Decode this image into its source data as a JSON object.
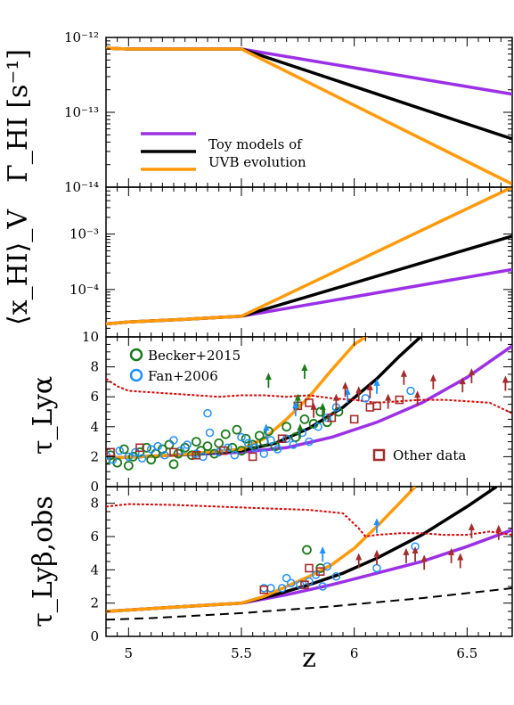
{
  "chart_data": [
    {
      "type": "line",
      "panel": "gamma",
      "ylabel": "Γ_HI [s⁻¹]",
      "xlabel": "z",
      "xlim": [
        4.9,
        6.7
      ],
      "ylim": [
        1e-14,
        1e-12
      ],
      "yscale": "log",
      "ytick_labels": [
        "10⁻¹²",
        "10⁻¹³",
        "10⁻¹⁴"
      ],
      "ytick_values": [
        1e-12,
        1e-13,
        1e-14
      ],
      "legend": {
        "position": "bottom-left",
        "entries": [
          "",
          "Toy models of",
          "UVB evolution"
        ]
      },
      "series": [
        {
          "color": "#9b30e6",
          "x": [
            4.9,
            5.0,
            5.5,
            6.7
          ],
          "y": [
            7.2e-13,
            7e-13,
            7e-13,
            1.75e-13
          ]
        },
        {
          "color": "#000000",
          "x": [
            4.9,
            5.0,
            5.5,
            6.7
          ],
          "y": [
            7.2e-13,
            7e-13,
            7e-13,
            4.4e-14
          ]
        },
        {
          "color": "#ff9a0a",
          "x": [
            4.9,
            5.0,
            5.5,
            6.7
          ],
          "y": [
            7.2e-13,
            7e-13,
            7e-13,
            1.1e-14
          ]
        }
      ]
    },
    {
      "type": "line",
      "panel": "xhi",
      "ylabel": "⟨x_HI⟩_V",
      "xlim": [
        4.9,
        6.7
      ],
      "ylim": [
        1.4e-05,
        0.007
      ],
      "yscale": "log",
      "ytick_labels": [
        "10⁻³",
        "10⁻⁴"
      ],
      "ytick_values": [
        0.001,
        0.0001
      ],
      "series": [
        {
          "color": "#9b30e6",
          "x": [
            4.9,
            5.0,
            5.25,
            5.5,
            6.7
          ],
          "y": [
            2.4e-05,
            2.6e-05,
            2.9e-05,
            3.3e-05,
            0.00023
          ]
        },
        {
          "color": "#000000",
          "x": [
            4.9,
            5.0,
            5.25,
            5.5,
            6.7
          ],
          "y": [
            2.4e-05,
            2.6e-05,
            2.9e-05,
            3.3e-05,
            0.00092
          ]
        },
        {
          "color": "#ff9a0a",
          "x": [
            4.9,
            5.0,
            5.25,
            5.5,
            6.7
          ],
          "y": [
            2.4e-05,
            2.6e-05,
            2.9e-05,
            3.3e-05,
            0.007
          ]
        }
      ]
    },
    {
      "type": "scatter",
      "panel": "taua",
      "ylabel": "τ_Lyα",
      "xlim": [
        4.9,
        6.7
      ],
      "ylim": [
        0,
        10
      ],
      "ytick_labels": [
        "0",
        "2",
        "4",
        "6",
        "8",
        "10"
      ],
      "ytick_values": [
        0,
        2,
        4,
        6,
        8,
        10
      ],
      "legend": {
        "entries": [
          "Becker+2015",
          "Fan+2006",
          "Other data"
        ]
      },
      "lines": [
        {
          "color": "#9b30e6",
          "x": [
            4.9,
            5.2,
            5.5,
            5.7,
            5.9,
            6.1,
            6.3,
            6.5,
            6.7
          ],
          "y": [
            1.9,
            2.1,
            2.3,
            2.6,
            3.3,
            4.3,
            5.6,
            7.3,
            9.4
          ]
        },
        {
          "color": "#000000",
          "x": [
            4.9,
            5.2,
            5.5,
            5.65,
            5.8,
            5.95,
            6.1,
            6.2,
            6.33
          ],
          "y": [
            1.9,
            2.1,
            2.4,
            2.9,
            3.9,
            5.3,
            7.2,
            8.7,
            10.5
          ]
        },
        {
          "color": "#ff9a0a",
          "x": [
            4.9,
            5.2,
            5.5,
            5.6,
            5.7,
            5.8,
            5.9,
            6.0,
            6.1
          ],
          "y": [
            1.9,
            2.1,
            2.5,
            3.2,
            4.5,
            6.0,
            7.8,
            9.5,
            10.5
          ]
        },
        {
          "color": "#e00000",
          "dashed": true,
          "x": [
            4.9,
            4.95,
            5.0,
            5.1,
            5.2,
            5.3,
            5.4,
            5.5,
            5.6,
            5.7,
            5.8,
            5.9,
            6.0,
            6.1,
            6.2,
            6.3,
            6.4,
            6.5,
            6.6,
            6.7
          ],
          "y": [
            7.2,
            6.7,
            6.4,
            6.3,
            6.2,
            6.1,
            6.0,
            6.1,
            6.1,
            6.0,
            6.1,
            5.9,
            5.8,
            5.6,
            5.7,
            5.8,
            5.8,
            5.7,
            5.6,
            4.9
          ]
        }
      ],
      "becker": [
        [
          4.9,
          1.8
        ],
        [
          4.92,
          2.1
        ],
        [
          4.95,
          1.6
        ],
        [
          4.98,
          2.5
        ],
        [
          5.0,
          1.4
        ],
        [
          5.02,
          2.0
        ],
        [
          5.05,
          2.3
        ],
        [
          5.08,
          2.6
        ],
        [
          5.1,
          1.8
        ],
        [
          5.12,
          2.2
        ],
        [
          5.15,
          2.5
        ],
        [
          5.18,
          2.8
        ],
        [
          5.2,
          1.5
        ],
        [
          5.22,
          2.2
        ],
        [
          5.25,
          2.6
        ],
        [
          5.28,
          2.1
        ],
        [
          5.3,
          3.0
        ],
        [
          5.32,
          2.4
        ],
        [
          5.35,
          2.7
        ],
        [
          5.38,
          2.2
        ],
        [
          5.4,
          2.9
        ],
        [
          5.43,
          3.5
        ],
        [
          5.46,
          2.6
        ],
        [
          5.48,
          3.8
        ],
        [
          5.5,
          2.4
        ],
        [
          5.52,
          3.2
        ],
        [
          5.55,
          2.8
        ],
        [
          5.58,
          3.4
        ],
        [
          5.6,
          3.0
        ],
        [
          5.62,
          3.7
        ],
        [
          5.65,
          2.7
        ],
        [
          5.7,
          4.0
        ],
        [
          5.74,
          3.3
        ],
        [
          5.78,
          4.5
        ],
        [
          5.82,
          4.2
        ],
        [
          5.85,
          5.0
        ],
        [
          5.88,
          4.3
        ],
        [
          5.93,
          5.0
        ]
      ],
      "fan": [
        [
          4.9,
          2.1
        ],
        [
          4.93,
          1.8
        ],
        [
          4.96,
          2.4
        ],
        [
          5.0,
          2.0
        ],
        [
          5.03,
          2.3
        ],
        [
          5.06,
          1.9
        ],
        [
          5.1,
          2.5
        ],
        [
          5.13,
          2.7
        ],
        [
          5.16,
          2.1
        ],
        [
          5.2,
          3.1
        ],
        [
          5.23,
          2.4
        ],
        [
          5.26,
          2.8
        ],
        [
          5.3,
          2.2
        ],
        [
          5.33,
          2.0
        ],
        [
          5.36,
          3.6
        ],
        [
          5.4,
          2.3
        ],
        [
          5.44,
          2.6
        ],
        [
          5.47,
          2.1
        ],
        [
          5.5,
          3.3
        ],
        [
          5.53,
          2.9
        ],
        [
          5.56,
          2.6
        ],
        [
          5.6,
          2.2
        ],
        [
          5.63,
          3.1
        ],
        [
          5.66,
          2.5
        ],
        [
          5.7,
          3.2
        ],
        [
          5.73,
          2.8
        ],
        [
          5.77,
          3.6
        ],
        [
          5.8,
          3.0
        ],
        [
          5.84,
          4.0
        ],
        [
          5.88,
          4.6
        ],
        [
          5.92,
          5.3
        ],
        [
          6.05,
          5.9
        ],
        [
          6.25,
          6.4
        ],
        [
          5.35,
          4.9
        ]
      ],
      "other": [
        [
          4.92,
          2.3
        ],
        [
          5.05,
          2.6
        ],
        [
          5.2,
          2.3
        ],
        [
          5.3,
          2.1
        ],
        [
          5.42,
          2.4
        ],
        [
          5.55,
          2.0
        ],
        [
          5.68,
          3.2
        ],
        [
          5.75,
          5.4
        ],
        [
          5.8,
          5.6
        ],
        [
          5.9,
          4.6
        ],
        [
          6.0,
          4.5
        ],
        [
          6.07,
          5.3
        ],
        [
          6.1,
          5.4
        ],
        [
          6.2,
          5.8
        ]
      ],
      "lower_limits": [
        {
          "x": 5.62,
          "y": 6.6,
          "color": "#1a7a1a"
        },
        {
          "x": 5.78,
          "y": 7.2,
          "color": "#1a7a1a"
        },
        {
          "x": 5.75,
          "y": 5.2,
          "color": "#1a7a1a"
        },
        {
          "x": 5.86,
          "y": 4.6,
          "color": "#1a7a1a"
        },
        {
          "x": 5.76,
          "y": 3.2,
          "color": "#1a7a1a"
        },
        {
          "x": 5.97,
          "y": 5.6,
          "color": "#1e90ff"
        },
        {
          "x": 6.1,
          "y": 6.2,
          "color": "#1e90ff"
        },
        {
          "x": 5.74,
          "y": 4.7,
          "color": "#1e90ff"
        },
        {
          "x": 5.61,
          "y": 3.2,
          "color": "#1e90ff"
        },
        {
          "x": 5.82,
          "y": 4.6,
          "color": "#a52a2a"
        },
        {
          "x": 5.92,
          "y": 5.2,
          "color": "#a52a2a"
        },
        {
          "x": 5.96,
          "y": 6.0,
          "color": "#a52a2a"
        },
        {
          "x": 6.02,
          "y": 5.7,
          "color": "#a52a2a"
        },
        {
          "x": 6.07,
          "y": 5.9,
          "color": "#a52a2a"
        },
        {
          "x": 6.15,
          "y": 5.2,
          "color": "#a52a2a"
        },
        {
          "x": 6.22,
          "y": 6.8,
          "color": "#a52a2a"
        },
        {
          "x": 6.28,
          "y": 5.4,
          "color": "#a52a2a"
        },
        {
          "x": 6.35,
          "y": 6.5,
          "color": "#a52a2a"
        },
        {
          "x": 6.48,
          "y": 6.3,
          "color": "#a52a2a"
        },
        {
          "x": 6.52,
          "y": 6.9,
          "color": "#a52a2a"
        },
        {
          "x": 6.67,
          "y": 6.4,
          "color": "#a52a2a"
        }
      ]
    },
    {
      "type": "scatter",
      "panel": "taub",
      "ylabel": "τ_Lyβ,obs",
      "xlabel": "z",
      "xlim": [
        4.9,
        6.7
      ],
      "ylim": [
        0,
        9
      ],
      "ytick_labels": [
        "0",
        "2",
        "4",
        "6",
        "8"
      ],
      "ytick_values": [
        0,
        2,
        4,
        6,
        8
      ],
      "xtick_labels": [
        "5",
        "5.5",
        "6",
        "6.5"
      ],
      "xtick_values": [
        5.0,
        5.5,
        6.0,
        6.5
      ],
      "lines": [
        {
          "color": "#9b30e6",
          "x": [
            4.9,
            5.2,
            5.5,
            5.7,
            5.9,
            6.1,
            6.3,
            6.5,
            6.7
          ],
          "y": [
            1.5,
            1.75,
            2.0,
            2.5,
            3.1,
            3.8,
            4.5,
            5.4,
            6.4
          ]
        },
        {
          "color": "#000000",
          "x": [
            4.9,
            5.2,
            5.5,
            5.65,
            5.8,
            5.95,
            6.1,
            6.3,
            6.5,
            6.63
          ],
          "y": [
            1.5,
            1.75,
            2.0,
            2.5,
            3.1,
            3.8,
            4.7,
            6.1,
            7.8,
            9.0
          ]
        },
        {
          "color": "#ff9a0a",
          "x": [
            4.9,
            5.2,
            5.5,
            5.6,
            5.7,
            5.8,
            5.9,
            6.0,
            6.1,
            6.2,
            6.27
          ],
          "y": [
            1.5,
            1.75,
            2.0,
            2.4,
            3.0,
            3.6,
            4.3,
            5.3,
            6.6,
            8.0,
            9.0
          ]
        },
        {
          "color": "#000000",
          "dashed": true,
          "x": [
            4.9,
            5.1,
            5.3,
            5.5,
            5.7,
            5.9,
            6.1,
            6.3,
            6.5,
            6.7
          ],
          "y": [
            1.0,
            1.1,
            1.25,
            1.4,
            1.6,
            1.8,
            2.05,
            2.3,
            2.6,
            2.9
          ]
        },
        {
          "color": "#e00000",
          "dashed": true,
          "x": [
            4.9,
            5.0,
            5.2,
            5.4,
            5.6,
            5.8,
            5.95,
            6.02,
            6.05,
            6.1,
            6.2,
            6.3,
            6.4,
            6.5,
            6.6,
            6.7
          ],
          "y": [
            7.8,
            7.95,
            7.9,
            7.8,
            7.7,
            7.6,
            7.4,
            6.5,
            6.0,
            6.1,
            6.2,
            6.2,
            6.1,
            6.1,
            6.3,
            6.1
          ]
        }
      ],
      "becker": [
        [
          5.79,
          5.2
        ],
        [
          5.85,
          4.1
        ]
      ],
      "fan": [
        [
          5.6,
          2.9
        ],
        [
          5.63,
          2.9
        ],
        [
          5.68,
          2.9
        ],
        [
          5.7,
          3.5
        ],
        [
          5.72,
          3.2
        ],
        [
          5.76,
          3.1
        ],
        [
          5.8,
          3.3
        ],
        [
          5.83,
          3.7
        ],
        [
          5.86,
          3.0
        ],
        [
          5.88,
          4.2
        ],
        [
          5.92,
          3.6
        ],
        [
          6.1,
          4.1
        ],
        [
          6.27,
          5.4
        ]
      ],
      "other": [
        [
          5.6,
          2.8
        ],
        [
          5.78,
          3.1
        ],
        [
          5.8,
          4.1
        ],
        [
          5.85,
          3.9
        ]
      ],
      "lower_limits": [
        {
          "x": 6.1,
          "y": 6.2,
          "color": "#1e90ff"
        },
        {
          "x": 5.86,
          "y": 4.5,
          "color": "#1e90ff"
        },
        {
          "x": 6.02,
          "y": 4.1,
          "color": "#a52a2a"
        },
        {
          "x": 6.1,
          "y": 4.3,
          "color": "#a52a2a"
        },
        {
          "x": 6.23,
          "y": 4.4,
          "color": "#a52a2a"
        },
        {
          "x": 6.27,
          "y": 4.5,
          "color": "#a52a2a"
        },
        {
          "x": 6.31,
          "y": 4.0,
          "color": "#a52a2a"
        },
        {
          "x": 6.43,
          "y": 4.4,
          "color": "#a52a2a"
        },
        {
          "x": 6.47,
          "y": 4.1,
          "color": "#a52a2a"
        },
        {
          "x": 6.52,
          "y": 5.9,
          "color": "#a52a2a"
        },
        {
          "x": 6.64,
          "y": 5.8,
          "color": "#a52a2a"
        }
      ]
    }
  ]
}
